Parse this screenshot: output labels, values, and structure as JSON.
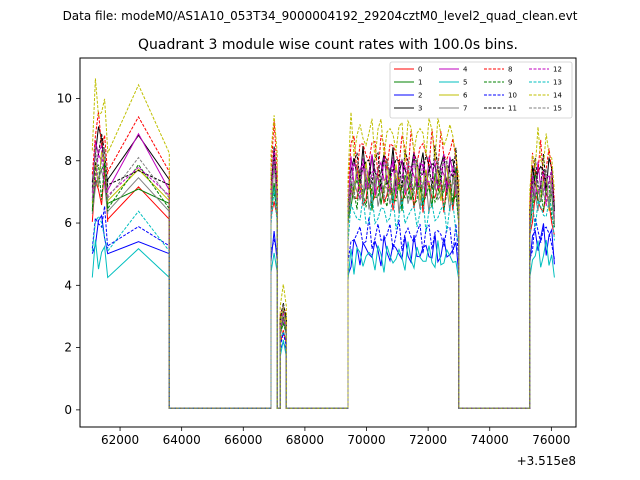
{
  "suptitle": "Data file: modeM0/AS1A10_053T34_9000004192_29204cztM0_level2_quad_clean.evt",
  "chart_data": {
    "type": "line",
    "title": "Quadrant 3 module wise count rates with 100.0s bins.",
    "xlabel": "",
    "ylabel": "",
    "x_offset_label": "+3.515e8",
    "xlim": [
      60700,
      76800
    ],
    "ylim": [
      -0.55,
      11.3
    ],
    "x_ticks": [
      62000,
      64000,
      66000,
      68000,
      70000,
      72000,
      74000,
      76000
    ],
    "y_ticks": [
      0,
      2,
      4,
      6,
      8,
      10
    ],
    "legend_position": "top-right",
    "segments": [
      {
        "start": 61100,
        "end": 61600,
        "n": 5
      },
      {
        "start": 61600,
        "end": 63600,
        "n": 2
      },
      {
        "start": 63600,
        "end": 66900,
        "n": 34
      },
      {
        "start": 66900,
        "end": 67100,
        "n": 2
      },
      {
        "start": 67100,
        "end": 67200,
        "n": 1
      },
      {
        "start": 67200,
        "end": 67400,
        "n": 2
      },
      {
        "start": 67400,
        "end": 69400,
        "n": 2
      },
      {
        "start": 69400,
        "end": 73000,
        "n": 37
      },
      {
        "start": 73000,
        "end": 75300,
        "n": 2
      },
      {
        "start": 75300,
        "end": 76100,
        "n": 9
      }
    ],
    "series": [
      {
        "name": "0",
        "color": "#ff0000",
        "dash": "solid",
        "levels": [
          7.1,
          7.2,
          0.05,
          7.3,
          0.05,
          2.5,
          0.05,
          7.0,
          0.05,
          6.6
        ]
      },
      {
        "name": "1",
        "color": "#008000",
        "dash": "solid",
        "levels": [
          7.6,
          7.8,
          0.05,
          7.6,
          0.05,
          2.9,
          0.05,
          7.1,
          0.05,
          7.0
        ]
      },
      {
        "name": "2",
        "color": "#0000ff",
        "dash": "solid",
        "levels": [
          5.9,
          5.9,
          0.05,
          5.6,
          0.05,
          2.3,
          0.05,
          5.1,
          0.05,
          5.5
        ]
      },
      {
        "name": "3",
        "color": "#000000",
        "dash": "solid",
        "levels": [
          8.6,
          8.7,
          0.05,
          8.3,
          0.05,
          3.5,
          0.05,
          7.7,
          0.05,
          7.6
        ]
      },
      {
        "name": "4",
        "color": "#bf00bf",
        "dash": "solid",
        "levels": [
          8.2,
          8.3,
          0.05,
          8.1,
          0.05,
          3.2,
          0.05,
          7.6,
          0.05,
          7.3
        ]
      },
      {
        "name": "5",
        "color": "#00bfbf",
        "dash": "solid",
        "levels": [
          5.0,
          5.0,
          0.05,
          5.2,
          0.05,
          2.0,
          0.05,
          4.9,
          0.05,
          5.0
        ]
      },
      {
        "name": "6",
        "color": "#bfbf00",
        "dash": "solid",
        "levels": [
          7.8,
          7.9,
          0.05,
          7.7,
          0.05,
          3.0,
          0.05,
          7.3,
          0.05,
          7.1
        ]
      },
      {
        "name": "7",
        "color": "#7f7f7f",
        "dash": "solid",
        "levels": [
          7.4,
          7.5,
          0.05,
          7.4,
          0.05,
          2.8,
          0.05,
          7.0,
          0.05,
          6.9
        ]
      },
      {
        "name": "8",
        "color": "#ff0000",
        "dash": "dashed",
        "levels": [
          8.9,
          9.0,
          0.05,
          9.0,
          0.05,
          3.6,
          0.05,
          8.3,
          0.05,
          7.9
        ]
      },
      {
        "name": "9",
        "color": "#008000",
        "dash": "dashed",
        "levels": [
          7.5,
          7.6,
          0.05,
          7.5,
          0.05,
          2.9,
          0.05,
          7.0,
          0.05,
          6.9
        ]
      },
      {
        "name": "10",
        "color": "#0000ff",
        "dash": "dashed",
        "levels": [
          6.1,
          6.2,
          0.05,
          6.0,
          0.05,
          2.4,
          0.05,
          5.6,
          0.05,
          5.7
        ]
      },
      {
        "name": "11",
        "color": "#000000",
        "dash": "dashed",
        "levels": [
          8.4,
          8.5,
          0.05,
          8.3,
          0.05,
          3.4,
          0.05,
          7.8,
          0.05,
          7.5
        ]
      },
      {
        "name": "12",
        "color": "#bf00bf",
        "dash": "dashed",
        "levels": [
          8.0,
          8.1,
          0.05,
          8.0,
          0.05,
          3.1,
          0.05,
          7.5,
          0.05,
          7.2
        ]
      },
      {
        "name": "13",
        "color": "#00bfbf",
        "dash": "dashed",
        "levels": [
          6.0,
          6.0,
          0.05,
          7.0,
          0.05,
          2.7,
          0.05,
          6.3,
          0.05,
          6.4
        ]
      },
      {
        "name": "14",
        "color": "#bfbf00",
        "dash": "dashed",
        "levels": [
          9.8,
          9.7,
          0.05,
          9.7,
          0.05,
          3.9,
          0.05,
          8.8,
          0.05,
          8.3
        ]
      },
      {
        "name": "15",
        "color": "#7f7f7f",
        "dash": "dashed",
        "levels": [
          7.9,
          8.0,
          0.05,
          7.8,
          0.05,
          3.0,
          0.05,
          7.4,
          0.05,
          7.1
        ]
      }
    ]
  }
}
